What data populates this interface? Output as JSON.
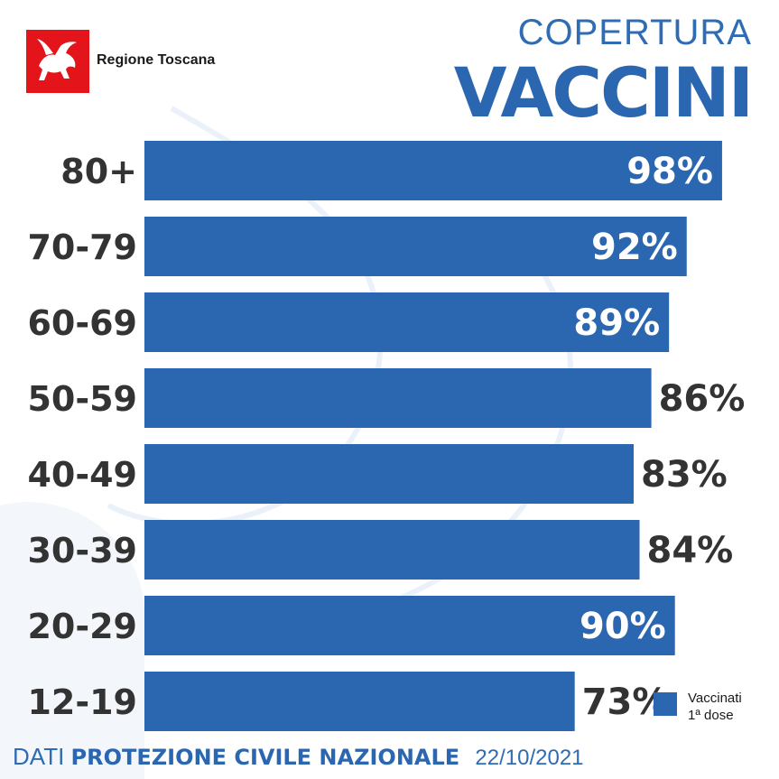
{
  "header": {
    "region_name": "Regione Toscana",
    "title_small": "COPERTURA",
    "title_big": "VACCINI",
    "logo_icon": "winged-horse-icon"
  },
  "colors": {
    "bar": "#2b66b0",
    "title": "#2f6cb3",
    "label": "#333333",
    "logo_bg": "#e3151a"
  },
  "chart_data": {
    "type": "bar",
    "orientation": "horizontal",
    "categories": [
      "80+",
      "70-79",
      "60-69",
      "50-59",
      "40-49",
      "30-39",
      "20-29",
      "12-19"
    ],
    "series": [
      {
        "name": "Vaccinati 1ª dose",
        "values": [
          98,
          92,
          89,
          86,
          83,
          84,
          90,
          73
        ],
        "labels": [
          "98%",
          "92%",
          "89%",
          "86%",
          "83%",
          "84%",
          "90%",
          "73%"
        ]
      }
    ],
    "title": "COPERTURA VACCINI",
    "xlabel": "",
    "ylabel": "",
    "xlim": [
      0,
      100
    ],
    "grid": false,
    "legend_position": "bottom-right"
  },
  "legend": {
    "line1": "Vaccinati",
    "line2": "1ª dose"
  },
  "footer": {
    "prefix": "DATI",
    "source": "PROTEZIONE CIVILE NAZIONALE",
    "date": "22/10/2021"
  }
}
